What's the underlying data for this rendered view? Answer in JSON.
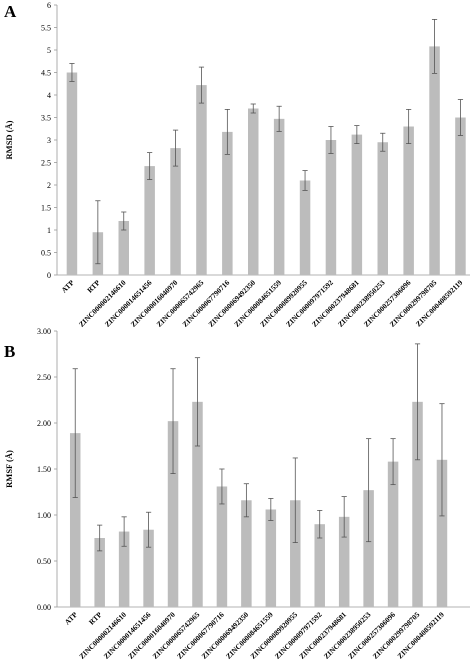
{
  "chart_data": [
    {
      "panel": "A",
      "type": "bar",
      "title": "",
      "xlabel": "",
      "ylabel": "RMSD (Å)",
      "ylim": [
        0,
        6
      ],
      "yticks": [
        "0",
        "0.5",
        "1",
        "1.5",
        "2",
        "2.5",
        "3",
        "3.5",
        "4",
        "4.5",
        "5",
        "5.5",
        "6"
      ],
      "grid": false,
      "bar_color": "#bcbcbc",
      "categories": [
        "ATP",
        "RTP",
        "ZINC000002146610",
        "ZINC000014651456",
        "ZINC000016040970",
        "ZINC000065742965",
        "ZINC000067790716",
        "ZINC000069492350",
        "ZINC000084651559",
        "ZINC000089920955",
        "ZINC000097971592",
        "ZINC000237948681",
        "ZINC000238950253",
        "ZINC000257306096",
        "ZINC000299798705",
        "ZINC000408592119"
      ],
      "values": [
        4.5,
        0.95,
        1.2,
        2.42,
        2.82,
        4.22,
        3.18,
        3.7,
        3.47,
        2.1,
        3.0,
        3.12,
        2.95,
        3.3,
        5.08,
        3.5
      ],
      "errors": [
        0.2,
        0.7,
        0.2,
        0.3,
        0.4,
        0.4,
        0.5,
        0.1,
        0.28,
        0.22,
        0.3,
        0.2,
        0.2,
        0.38,
        0.6,
        0.4
      ]
    },
    {
      "panel": "B",
      "type": "bar",
      "title": "",
      "xlabel": "",
      "ylabel": "RMSF (Å)",
      "ylim": [
        0,
        3
      ],
      "yticks": [
        "0.00",
        "0.50",
        "1.00",
        "1.50",
        "2.00",
        "2.50",
        "3.00"
      ],
      "grid": false,
      "bar_color": "#bcbcbc",
      "categories": [
        "ATP",
        "RTP",
        "ZINC000002146610",
        "ZINC000014651456",
        "ZINC000016040970",
        "ZINC000065742965",
        "ZINC000067790716",
        "ZINC000069492350",
        "ZINC000084651559",
        "ZINC000089920955",
        "ZINC000097971592",
        "ZINC000237948681",
        "ZINC000238950253",
        "ZINC000257306096",
        "ZINC000299798705",
        "ZINC000408592119"
      ],
      "values": [
        1.89,
        0.75,
        0.82,
        0.84,
        2.02,
        2.23,
        1.31,
        1.16,
        1.06,
        1.16,
        0.9,
        0.98,
        1.27,
        1.58,
        2.23,
        1.6
      ],
      "errors": [
        0.7,
        0.14,
        0.16,
        0.19,
        0.57,
        0.48,
        0.19,
        0.18,
        0.12,
        0.46,
        0.15,
        0.22,
        0.56,
        0.25,
        0.63,
        0.61
      ]
    }
  ]
}
